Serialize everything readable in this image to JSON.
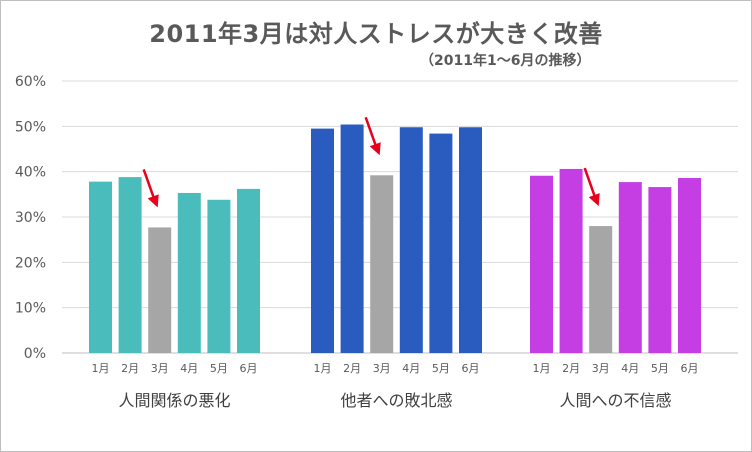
{
  "chart_data": {
    "type": "bar",
    "title": "2011年3月は対人ストレスが大きく改善",
    "subtitle": "（2011年1～6月の推移）",
    "groups": [
      "人間関係の悪化",
      "他者への敗北感",
      "人間への不信感"
    ],
    "months": [
      "1月",
      "2月",
      "3月",
      "4月",
      "5月",
      "6月"
    ],
    "series": [
      {
        "values": [
          37.8,
          38.8,
          27.7,
          35.3,
          33.8,
          36.2
        ]
      },
      {
        "values": [
          49.5,
          50.4,
          39.2,
          49.8,
          48.4,
          49.8
        ]
      },
      {
        "values": [
          39.1,
          40.6,
          28.0,
          37.7,
          36.6,
          38.6
        ]
      }
    ],
    "yticks": [
      "0%",
      "10%",
      "20%",
      "30%",
      "40%",
      "50%",
      "60%"
    ],
    "ylim": [
      0,
      60
    ],
    "grid": true,
    "colors": {
      "groups": [
        "#4bbcbc",
        "#2a5cbf",
        "#c43ee3"
      ],
      "highlight": "#a6a6a6",
      "arrow": "#e8001c",
      "grid": "#d9d9d9"
    },
    "highlight_month_index": 2
  }
}
